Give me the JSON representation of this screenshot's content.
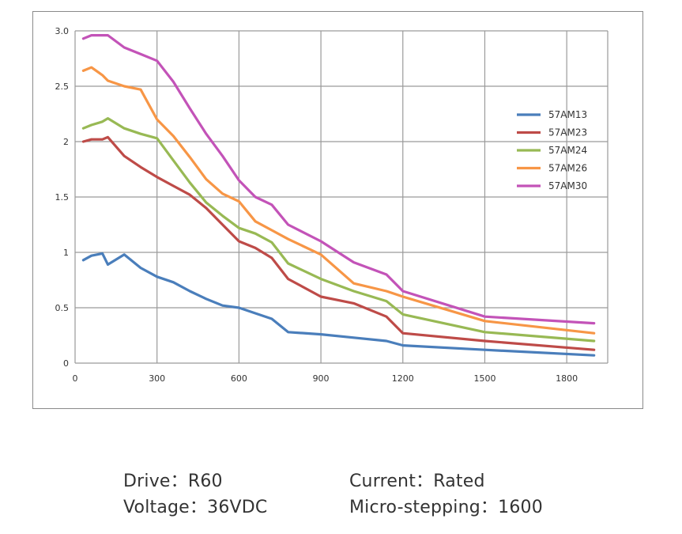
{
  "chart_data": {
    "type": "line",
    "title": "",
    "xlabel": "",
    "ylabel": "",
    "xlim": [
      0,
      1950
    ],
    "ylim": [
      0,
      3.0
    ],
    "x_ticks": [
      0,
      300,
      600,
      900,
      1200,
      1500,
      1800
    ],
    "x_tick_labels": [
      "0",
      "300",
      "600",
      "900",
      "1200",
      "1500",
      "1800"
    ],
    "y_ticks": [
      0,
      0.5,
      1,
      1.5,
      2,
      2.5,
      3.0
    ],
    "y_tick_labels": [
      "0",
      "0.5",
      "1",
      "1.5",
      "2",
      "2.5",
      "3.0"
    ],
    "grid": true,
    "legend_position": "right",
    "series": [
      {
        "name": "57AM13",
        "color": "#4a7ebb",
        "x": [
          30,
          60,
          100,
          120,
          180,
          240,
          300,
          360,
          420,
          480,
          540,
          600,
          660,
          720,
          780,
          900,
          1020,
          1140,
          1200,
          1500,
          1900
        ],
        "y": [
          0.93,
          0.97,
          0.99,
          0.89,
          0.98,
          0.86,
          0.78,
          0.73,
          0.65,
          0.58,
          0.52,
          0.5,
          0.45,
          0.4,
          0.28,
          0.26,
          0.23,
          0.2,
          0.16,
          0.12,
          0.07
        ]
      },
      {
        "name": "57AM23",
        "color": "#be4b48",
        "x": [
          30,
          60,
          100,
          120,
          180,
          240,
          300,
          360,
          420,
          480,
          540,
          600,
          660,
          720,
          780,
          900,
          1020,
          1140,
          1200,
          1500,
          1900
        ],
        "y": [
          2.0,
          2.02,
          2.02,
          2.04,
          1.87,
          1.77,
          1.68,
          1.6,
          1.52,
          1.4,
          1.25,
          1.1,
          1.04,
          0.95,
          0.76,
          0.6,
          0.54,
          0.42,
          0.27,
          0.2,
          0.12
        ]
      },
      {
        "name": "57AM24",
        "color": "#98b954",
        "x": [
          30,
          60,
          100,
          120,
          180,
          240,
          300,
          360,
          420,
          480,
          540,
          600,
          660,
          720,
          780,
          900,
          1020,
          1140,
          1200,
          1500,
          1900
        ],
        "y": [
          2.12,
          2.15,
          2.18,
          2.21,
          2.12,
          2.07,
          2.03,
          1.83,
          1.63,
          1.45,
          1.33,
          1.22,
          1.17,
          1.09,
          0.9,
          0.76,
          0.65,
          0.56,
          0.44,
          0.28,
          0.2
        ]
      },
      {
        "name": "57AM26",
        "color": "#f79646",
        "x": [
          30,
          60,
          100,
          120,
          180,
          240,
          300,
          360,
          420,
          480,
          540,
          600,
          660,
          720,
          780,
          900,
          1020,
          1140,
          1200,
          1500,
          1900
        ],
        "y": [
          2.64,
          2.67,
          2.6,
          2.55,
          2.5,
          2.47,
          2.2,
          2.05,
          1.86,
          1.66,
          1.53,
          1.46,
          1.28,
          1.2,
          1.12,
          0.98,
          0.72,
          0.65,
          0.6,
          0.38,
          0.27
        ]
      },
      {
        "name": "57AM30",
        "color": "#c353b8",
        "x": [
          30,
          60,
          100,
          120,
          180,
          240,
          300,
          360,
          420,
          480,
          540,
          600,
          660,
          720,
          780,
          900,
          1020,
          1140,
          1200,
          1500,
          1900
        ],
        "y": [
          2.93,
          2.96,
          2.96,
          2.96,
          2.85,
          2.79,
          2.73,
          2.54,
          2.3,
          2.07,
          1.87,
          1.65,
          1.5,
          1.43,
          1.25,
          1.1,
          0.91,
          0.8,
          0.65,
          0.42,
          0.36
        ]
      }
    ]
  },
  "info": {
    "drive": "Drive：R60",
    "current": "Current：Rated",
    "voltage": "Voltage：36VDC",
    "micro_stepping": "Micro-stepping：1600"
  }
}
